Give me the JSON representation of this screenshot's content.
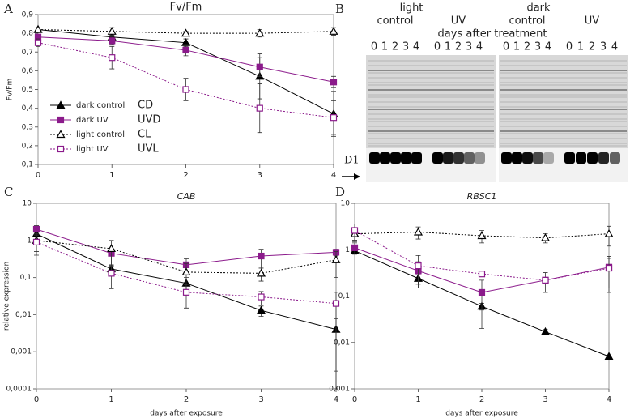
{
  "chart_data": [
    {
      "type": "line",
      "panel": "A",
      "title": "Fv/Fm",
      "ylabel": "Fv/Fm",
      "log": false,
      "legend": "lower left",
      "x": [
        0,
        1,
        2,
        3,
        4
      ],
      "xlim": [
        0,
        4
      ],
      "xticks": [
        0,
        1,
        2,
        3,
        4
      ],
      "ylim": [
        0.1,
        0.9
      ],
      "yticks": [
        {
          "value": 0.1,
          "label": "0,1"
        },
        {
          "value": 0.2,
          "label": "0,2"
        },
        {
          "value": 0.3,
          "label": "0,3"
        },
        {
          "value": 0.4,
          "label": "0,4"
        },
        {
          "value": 0.5,
          "label": "0,5"
        },
        {
          "value": 0.6,
          "label": "0,6"
        },
        {
          "value": 0.7,
          "label": "0,7"
        },
        {
          "value": 0.8,
          "label": "0,8"
        },
        {
          "value": 0.9,
          "label": "0,9"
        }
      ],
      "series": [
        {
          "name": "dark control",
          "label": "CD",
          "color": "#000000",
          "marker": "triangle",
          "filled": true,
          "dash": false,
          "values": [
            0.82,
            0.78,
            0.75,
            0.57,
            0.37
          ],
          "errors": [
            0.01,
            0.02,
            0.02,
            0.12,
            0.12
          ]
        },
        {
          "name": "dark UV",
          "label": "UVD",
          "color": "#8b1a8b",
          "marker": "square",
          "filled": true,
          "dash": false,
          "values": [
            0.78,
            0.76,
            0.71,
            0.62,
            0.54
          ],
          "errors": [
            0.01,
            0.02,
            0.03,
            0.05,
            0.03
          ]
        },
        {
          "name": "light control",
          "label": "CL",
          "color": "#000000",
          "marker": "triangle",
          "filled": false,
          "dash": true,
          "values": [
            0.82,
            0.81,
            0.8,
            0.8,
            0.81
          ],
          "errors": [
            0.01,
            0.02,
            0.01,
            0.02,
            0.02
          ]
        },
        {
          "name": "light UV",
          "label": "UVL",
          "color": "#8b1a8b",
          "marker": "square",
          "filled": false,
          "dash": true,
          "values": [
            0.75,
            0.67,
            0.5,
            0.4,
            0.35
          ],
          "errors": [
            0.02,
            0.06,
            0.06,
            0.13,
            0.09
          ]
        }
      ]
    },
    {
      "type": "line",
      "panel": "C",
      "title": "CAB",
      "ylabel": "relative expression",
      "xlabel": "days after exposure",
      "log": true,
      "x": [
        0,
        1,
        2,
        3,
        4
      ],
      "xlim": [
        0,
        4
      ],
      "xticks": [
        0,
        1,
        2,
        3,
        4
      ],
      "ylim": [
        0.0001,
        10
      ],
      "yticks": [
        {
          "value": 0.0001,
          "label": "0,0001"
        },
        {
          "value": 0.001,
          "label": "0,001"
        },
        {
          "value": 0.01,
          "label": "0,01"
        },
        {
          "value": 0.1,
          "label": "0,1"
        },
        1,
        10
      ],
      "series": [
        {
          "color": "#000000",
          "marker": "triangle",
          "filled": true,
          "dash": false,
          "values": [
            1.5,
            0.17,
            0.07,
            0.013,
            0.004
          ],
          "errors": [
            0.5,
            0.05,
            0.03,
            0.004,
            0.0037
          ]
        },
        {
          "color": "#8b1a8b",
          "marker": "square",
          "filled": true,
          "dash": false,
          "values": [
            2,
            0.45,
            0.22,
            0.38,
            0.48
          ],
          "errors": [
            0.5,
            0.3,
            0.1,
            0.2,
            0.1
          ]
        },
        {
          "color": "#000000",
          "marker": "triangle",
          "filled": false,
          "dash": true,
          "values": [
            1.0,
            0.6,
            0.14,
            0.13,
            0.3
          ],
          "errors": [
            0.5,
            0.4,
            0.1,
            0.05,
            0.2
          ]
        },
        {
          "color": "#8b1a8b",
          "marker": "square",
          "filled": false,
          "dash": true,
          "values": [
            0.9,
            0.13,
            0.04,
            0.03,
            0.02
          ],
          "errors": [
            0.5,
            0.08,
            0.025,
            0.012,
            0.02
          ]
        }
      ]
    },
    {
      "type": "line",
      "panel": "D",
      "title": "RBSC1",
      "xlabel": "days after exposure",
      "log": true,
      "x": [
        0,
        1,
        2,
        3,
        4
      ],
      "xlim": [
        0,
        4
      ],
      "xticks": [
        0,
        1,
        2,
        3,
        4
      ],
      "ylim": [
        0.001,
        10
      ],
      "yticks": [
        {
          "value": 0.001,
          "label": "0,001"
        },
        {
          "value": 0.01,
          "label": "0,01"
        },
        {
          "value": 0.1,
          "label": "0,1"
        },
        1,
        10
      ],
      "series": [
        {
          "color": "#000000",
          "marker": "triangle",
          "filled": true,
          "dash": false,
          "values": [
            0.95,
            0.24,
            0.06,
            0.017,
            0.005
          ],
          "errors": [
            0.1,
            0.06,
            0.01,
            0.002,
            0.0003
          ]
        },
        {
          "color": "#8b1a8b",
          "marker": "square",
          "filled": true,
          "dash": false,
          "values": [
            1.1,
            0.35,
            0.12,
            0.22,
            0.42
          ],
          "errors": [
            0.3,
            0.2,
            0.1,
            0.1,
            0.3
          ]
        },
        {
          "color": "#000000",
          "marker": "triangle",
          "filled": false,
          "dash": true,
          "values": [
            2.2,
            2.4,
            2.0,
            1.8,
            2.2
          ],
          "errors": [
            0.7,
            0.7,
            0.6,
            0.4,
            1.0
          ]
        },
        {
          "color": "#8b1a8b",
          "marker": "square",
          "filled": false,
          "dash": true,
          "values": [
            2.6,
            0.45,
            0.3,
            0.22,
            0.4
          ],
          "errors": [
            1.0,
            0.3,
            0.5,
            0.3,
            0.25
          ]
        }
      ]
    }
  ],
  "gel": {
    "panel": "B",
    "light": "light",
    "dark": "dark",
    "caption": "days after treatment",
    "band": "D1",
    "groups": [
      {
        "name": "control",
        "lanes": [
          "0",
          "1",
          "2",
          "3",
          "4"
        ]
      },
      {
        "name": "UV",
        "lanes": [
          "0",
          "1",
          "2",
          "3",
          "4"
        ]
      },
      {
        "name": "control",
        "lanes": [
          "0",
          "1",
          "2",
          "3",
          "4"
        ]
      },
      {
        "name": "UV",
        "lanes": [
          "0",
          "1",
          "2",
          "3",
          "4"
        ]
      }
    ]
  }
}
